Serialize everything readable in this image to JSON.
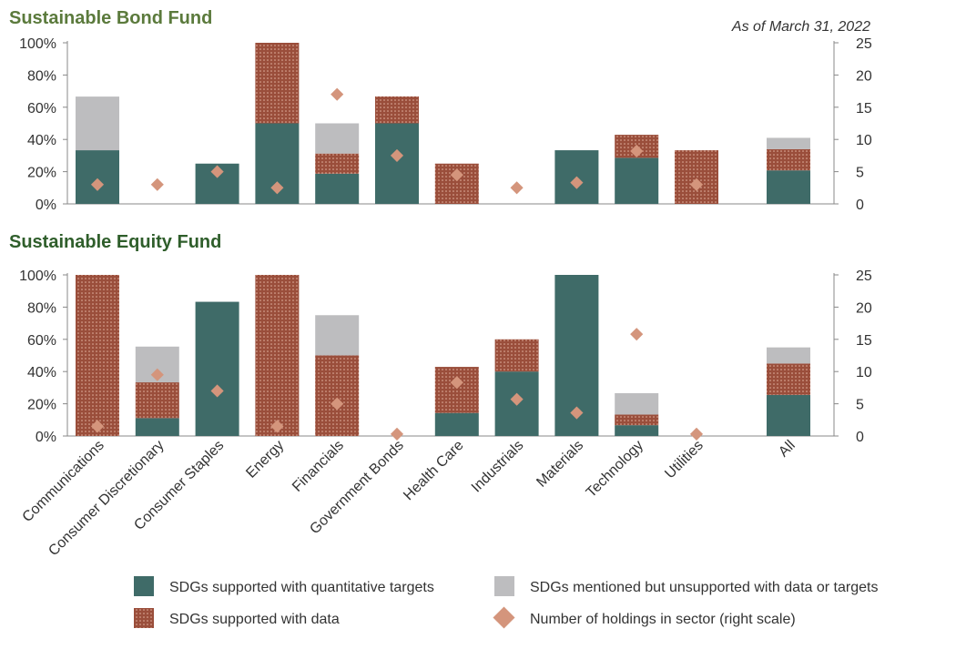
{
  "date_label": "As of March 31, 2022",
  "colors": {
    "quant": "#3f6b68",
    "data_fill": "#9a4e3b",
    "data_dot": "#e8b9a8",
    "mentioned": "#bdbdbf",
    "diamond": "#d4957c",
    "bond_title": "#5b7a3c",
    "equity_title": "#2f5e2b",
    "axis": "#888888"
  },
  "chart_data": [
    {
      "type": "bar",
      "stacked": true,
      "title": "Sustainable Bond Fund",
      "categories": [
        "Communications",
        "Consumer Discretionary",
        "Consumer Staples",
        "Energy",
        "Financials",
        "Government Bonds",
        "Health Care",
        "Industrials",
        "Materials",
        "Technology",
        "Utilities",
        "All"
      ],
      "left_axis": {
        "ylim": [
          0,
          100
        ],
        "ticks": [
          "0%",
          "20%",
          "40%",
          "60%",
          "80%",
          "100%"
        ]
      },
      "right_axis": {
        "ylim": [
          0,
          25
        ],
        "ticks": [
          "0",
          "5",
          "10",
          "15",
          "20",
          "25"
        ]
      },
      "series": [
        {
          "name": "SDGs supported with quantitative targets",
          "values": [
            33.3,
            0,
            25,
            50,
            18.75,
            50,
            0,
            0,
            33.3,
            28.6,
            0,
            20.8
          ]
        },
        {
          "name": "SDGs supported with data",
          "values": [
            0,
            0,
            0,
            50,
            12.5,
            16.7,
            25,
            0,
            0,
            14.3,
            33.3,
            13.2
          ]
        },
        {
          "name": "SDGs mentioned but unsupported with data or targets",
          "values": [
            33.3,
            0,
            0,
            0,
            18.75,
            0,
            0,
            0,
            0,
            0,
            0,
            7.0
          ]
        }
      ],
      "holdings": [
        3,
        3,
        5,
        2.5,
        17,
        7.5,
        4.5,
        2.5,
        3.3,
        8.2,
        3,
        null
      ]
    },
    {
      "type": "bar",
      "stacked": true,
      "title": "Sustainable Equity Fund",
      "categories": [
        "Communications",
        "Consumer Discretionary",
        "Consumer Staples",
        "Energy",
        "Financials",
        "Government Bonds",
        "Health Care",
        "Industrials",
        "Materials",
        "Technology",
        "Utilities",
        "All"
      ],
      "left_axis": {
        "ylim": [
          0,
          100
        ],
        "ticks": [
          "0%",
          "20%",
          "40%",
          "60%",
          "80%",
          "100%"
        ]
      },
      "right_axis": {
        "ylim": [
          0,
          25
        ],
        "ticks": [
          "0",
          "5",
          "10",
          "15",
          "20",
          "25"
        ]
      },
      "series": [
        {
          "name": "SDGs supported with quantitative targets",
          "values": [
            0,
            11.1,
            83.3,
            0,
            0,
            0,
            14.3,
            40,
            100,
            6.7,
            0,
            25.5
          ]
        },
        {
          "name": "SDGs supported with data",
          "values": [
            100,
            22.2,
            0,
            100,
            50,
            0,
            28.6,
            20,
            0,
            6.6,
            0,
            19.5
          ]
        },
        {
          "name": "SDGs mentioned but unsupported with data or targets",
          "values": [
            0,
            22.2,
            0,
            0,
            25,
            0,
            0,
            0,
            0,
            13.3,
            0,
            10
          ]
        }
      ],
      "holdings": [
        1.5,
        9.5,
        7,
        1.5,
        5,
        0.3,
        8.3,
        5.7,
        3.6,
        15.8,
        0.3,
        null
      ]
    }
  ],
  "legend": [
    {
      "key": "quant",
      "label": "SDGs supported with quantitative targets"
    },
    {
      "key": "mentioned",
      "label": "SDGs mentioned but unsupported with data or targets"
    },
    {
      "key": "data",
      "label": "SDGs supported with data"
    },
    {
      "key": "diamond",
      "label": "Number of holdings in sector (right scale)"
    }
  ]
}
